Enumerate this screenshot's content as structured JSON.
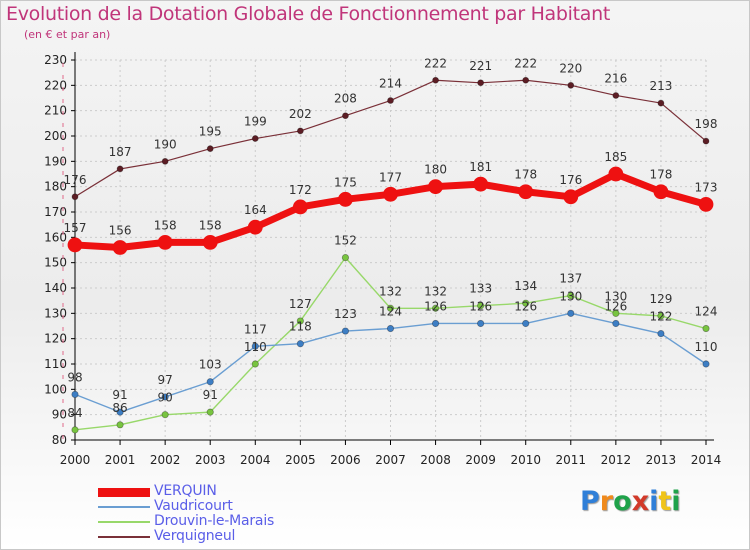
{
  "title": "Evolution de la Dotation Globale de Fonctionnement par Habitant",
  "subtitle": "(en € et par an)",
  "logo": {
    "text": "Proxiti",
    "colors": [
      "#2f7fd8",
      "#f08a1c",
      "#1fa24a",
      "#d23a2a",
      "#2f7fd8",
      "#f0c419",
      "#1fa24a"
    ]
  },
  "colors": {
    "title": "#c0357a",
    "axis": "#000000",
    "grid": "#cccccc",
    "legend_text": "#5a5ee8"
  },
  "chart_data": {
    "type": "line",
    "x": [
      "2000",
      "2001",
      "2002",
      "2003",
      "2004",
      "2005",
      "2006",
      "2007",
      "2008",
      "2009",
      "2010",
      "2011",
      "2012",
      "2013",
      "2014"
    ],
    "ylim": [
      80,
      230
    ],
    "yticks": [
      80,
      90,
      100,
      110,
      120,
      130,
      140,
      150,
      160,
      170,
      180,
      190,
      200,
      210,
      220,
      230
    ],
    "grid": true,
    "legend_position": "bottom-left",
    "series": [
      {
        "name": "VERQUIN",
        "color": "#ee1111",
        "values": [
          157,
          156,
          158,
          158,
          164,
          172,
          175,
          177,
          180,
          181,
          178,
          176,
          185,
          178,
          173
        ]
      },
      {
        "name": "Vaudricourt",
        "color": "#6a9ed2",
        "values": [
          98,
          91,
          97,
          103,
          117,
          118,
          123,
          124,
          126,
          126,
          126,
          130,
          126,
          122,
          110
        ]
      },
      {
        "name": "Drouvin-le-Marais",
        "color": "#98d86a",
        "values": [
          84,
          86,
          90,
          91,
          110,
          127,
          152,
          132,
          132,
          133,
          134,
          137,
          130,
          129,
          124
        ]
      },
      {
        "name": "Verquigneul",
        "color": "#7a3038",
        "values": [
          176,
          187,
          190,
          195,
          199,
          202,
          208,
          214,
          222,
          221,
          222,
          220,
          216,
          213,
          198
        ]
      }
    ]
  }
}
